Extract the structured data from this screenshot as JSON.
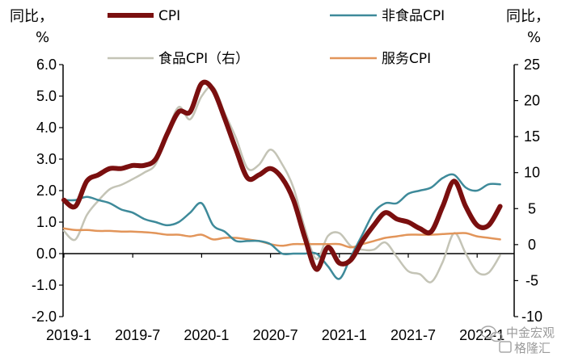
{
  "chart_data": {
    "type": "line",
    "title": "",
    "left_unit": [
      "同比，",
      "%"
    ],
    "right_unit": [
      "同比，",
      "%"
    ],
    "x_tick_labels": [
      "2019-1",
      "2019-7",
      "2020-1",
      "2020-7",
      "2021-1",
      "2021-7",
      "2022-1"
    ],
    "x": [
      "2019-01",
      "2019-02",
      "2019-03",
      "2019-04",
      "2019-05",
      "2019-06",
      "2019-07",
      "2019-08",
      "2019-09",
      "2019-10",
      "2019-11",
      "2019-12",
      "2020-01",
      "2020-02",
      "2020-03",
      "2020-04",
      "2020-05",
      "2020-06",
      "2020-07",
      "2020-08",
      "2020-09",
      "2020-10",
      "2020-11",
      "2020-12",
      "2021-01",
      "2021-02",
      "2021-03",
      "2021-04",
      "2021-05",
      "2021-06",
      "2021-07",
      "2021-08",
      "2021-09",
      "2021-10",
      "2021-11",
      "2021-12",
      "2022-01",
      "2022-02",
      "2022-03"
    ],
    "y_left": {
      "min": -2.0,
      "max": 6.0,
      "ticks": [
        "6.0",
        "5.0",
        "4.0",
        "3.0",
        "2.0",
        "1.0",
        "0.0",
        "-1.0",
        "-2.0"
      ]
    },
    "y_right": {
      "min": -10,
      "max": 25,
      "ticks": [
        "25",
        "20",
        "15",
        "10",
        "5",
        "0",
        "-5",
        "-10"
      ]
    },
    "series": [
      {
        "name": "CPI",
        "axis": "left",
        "color": "#7a0f0f",
        "width": 6,
        "values": [
          1.7,
          1.5,
          2.3,
          2.5,
          2.7,
          2.7,
          2.8,
          2.8,
          3.0,
          3.8,
          4.5,
          4.5,
          5.4,
          5.2,
          4.3,
          3.3,
          2.4,
          2.5,
          2.7,
          2.4,
          1.7,
          0.5,
          -0.5,
          0.2,
          -0.3,
          -0.2,
          0.4,
          0.9,
          1.3,
          1.1,
          1.0,
          0.8,
          0.7,
          1.5,
          2.3,
          1.5,
          0.9,
          0.9,
          1.5
        ]
      },
      {
        "name": "非食品CPI",
        "axis": "left",
        "color": "#3e8a9a",
        "width": 2.5,
        "values": [
          1.7,
          1.7,
          1.8,
          1.7,
          1.6,
          1.4,
          1.3,
          1.1,
          1.0,
          0.9,
          1.0,
          1.3,
          1.6,
          0.9,
          0.7,
          0.4,
          0.4,
          0.4,
          0.3,
          0.0,
          0.0,
          0.0,
          0.0,
          -0.4,
          -0.8,
          -0.1,
          0.6,
          1.3,
          1.6,
          1.6,
          1.9,
          2.0,
          2.1,
          2.4,
          2.5,
          2.1,
          2.0,
          2.2,
          2.2
        ]
      },
      {
        "name": "食品CPI（右）",
        "axis": "right",
        "color": "#c4c4b6",
        "width": 2.5,
        "values": [
          1.9,
          0.7,
          4.1,
          6.1,
          7.7,
          8.3,
          9.1,
          10.0,
          11.2,
          15.5,
          19.1,
          17.4,
          20.6,
          21.9,
          18.3,
          14.8,
          10.6,
          11.1,
          13.2,
          11.2,
          7.9,
          2.2,
          -2.0,
          1.2,
          1.6,
          -0.2,
          -0.7,
          -0.7,
          0.3,
          -1.7,
          -3.7,
          -4.1,
          -5.2,
          -2.4,
          1.6,
          -1.2,
          -3.8,
          -3.9,
          -1.5
        ]
      },
      {
        "name": "服务CPI",
        "axis": "left",
        "color": "#e2955a",
        "width": 2.5,
        "values": [
          0.8,
          0.75,
          0.75,
          0.72,
          0.72,
          0.7,
          0.7,
          0.68,
          0.65,
          0.6,
          0.6,
          0.55,
          0.6,
          0.45,
          0.5,
          0.5,
          0.45,
          0.4,
          0.3,
          0.25,
          0.3,
          0.3,
          0.3,
          0.3,
          0.3,
          0.2,
          0.3,
          0.4,
          0.5,
          0.55,
          0.6,
          0.6,
          0.6,
          0.62,
          0.64,
          0.65,
          0.55,
          0.5,
          0.45
        ]
      }
    ],
    "legend": {
      "placement": "top",
      "entries": [
        {
          "label": "CPI",
          "color": "#7a0f0f"
        },
        {
          "label": "非食品CPI",
          "color": "#3e8a9a"
        },
        {
          "label": "食品CPI（右）",
          "color": "#c4c4b6"
        },
        {
          "label": "服务CPI",
          "color": "#e2955a"
        }
      ]
    },
    "grid": false
  },
  "watermark": {
    "text": "中金宏观",
    "subtext": "格隆汇",
    "icon": "wechat-icon"
  }
}
